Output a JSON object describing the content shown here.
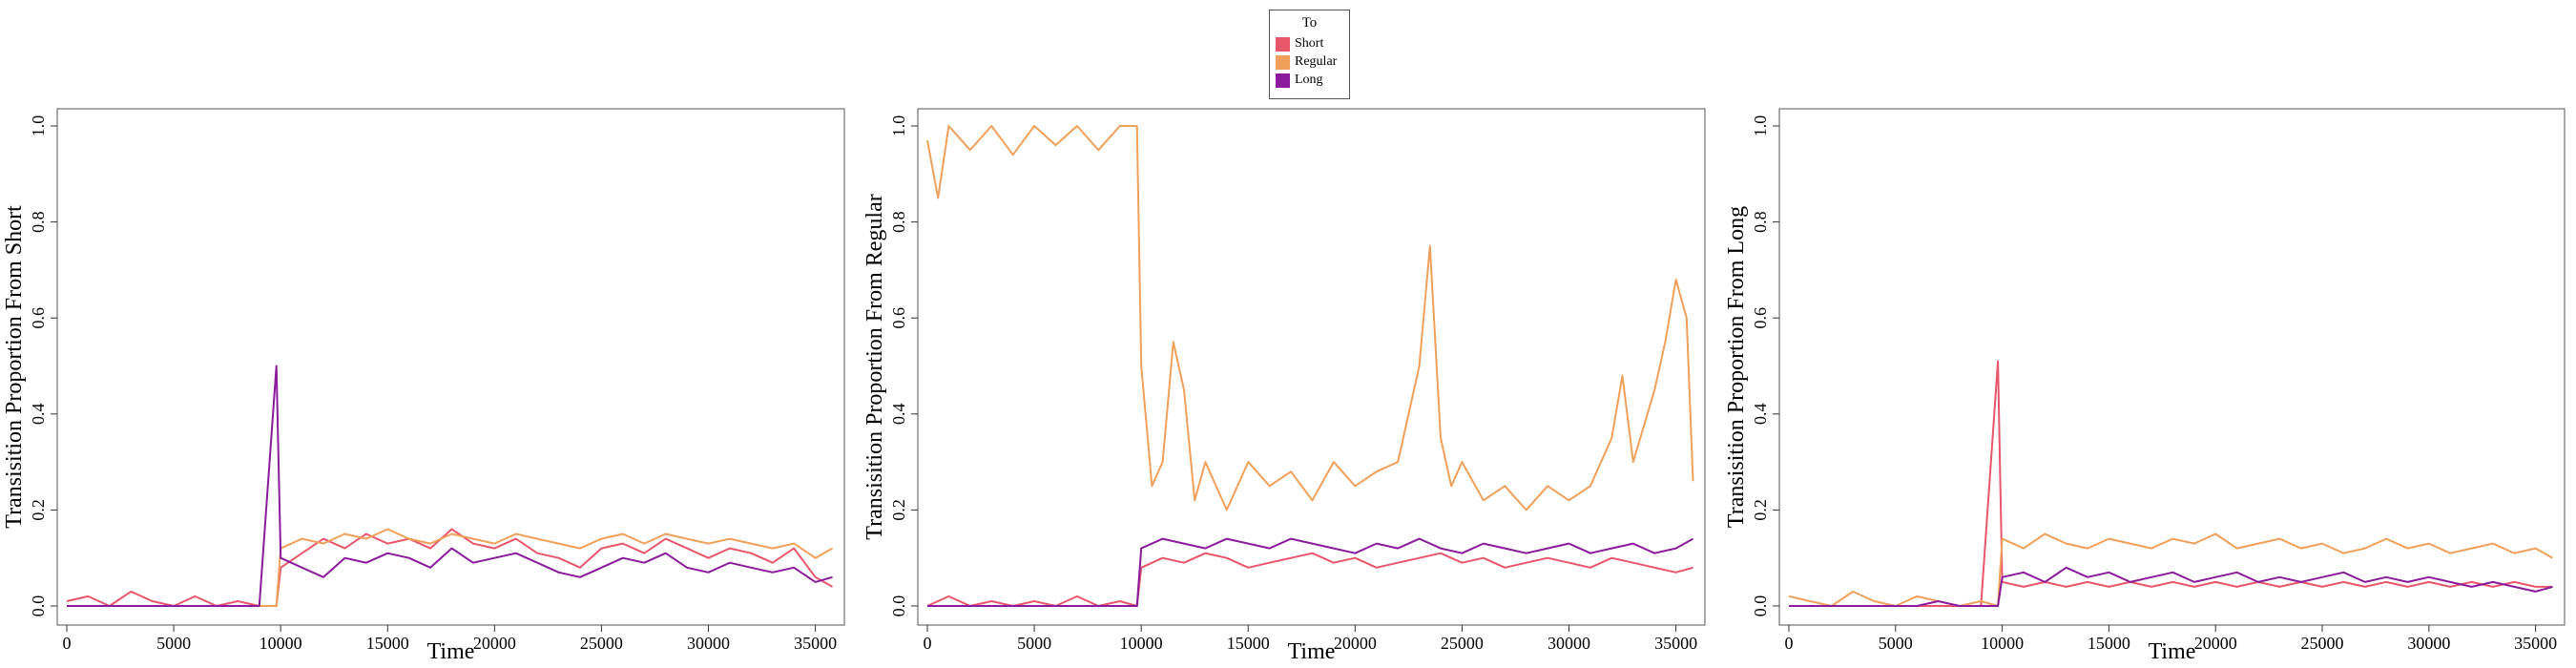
{
  "legend": {
    "title": "To",
    "items": [
      {
        "label": "Short",
        "color": "#e8566c"
      },
      {
        "label": "Regular",
        "color": "#f0a05a"
      },
      {
        "label": "Long",
        "color": "#8b1a9c"
      }
    ]
  },
  "chart_data": [
    {
      "type": "line",
      "xlabel": "Time",
      "ylabel": "Transisition Proportion From Short",
      "xlim": [
        0,
        36000
      ],
      "ylim": [
        0,
        1
      ],
      "xticks": [
        0,
        5000,
        10000,
        15000,
        20000,
        25000,
        30000,
        35000
      ],
      "yticks": [
        0.0,
        0.2,
        0.4,
        0.6,
        0.8,
        1.0
      ],
      "ytick_labels": [
        "0.0",
        "0.2",
        "0.4",
        "0.6",
        "0.8",
        "1.0"
      ],
      "series": [
        {
          "name": "Short",
          "color": "#e8566c",
          "x": [
            0,
            1000,
            2000,
            3000,
            4000,
            5000,
            6000,
            7000,
            8000,
            9000,
            9800,
            10000,
            11000,
            12000,
            13000,
            14000,
            15000,
            16000,
            17000,
            18000,
            19000,
            20000,
            21000,
            22000,
            23000,
            24000,
            25000,
            26000,
            27000,
            28000,
            29000,
            30000,
            31000,
            32000,
            33000,
            34000,
            35000,
            35800
          ],
          "y": [
            0.01,
            0.02,
            0.0,
            0.03,
            0.01,
            0.0,
            0.02,
            0.0,
            0.01,
            0.0,
            0.0,
            0.08,
            0.11,
            0.14,
            0.12,
            0.15,
            0.13,
            0.14,
            0.12,
            0.16,
            0.13,
            0.12,
            0.14,
            0.11,
            0.1,
            0.08,
            0.12,
            0.13,
            0.11,
            0.14,
            0.12,
            0.1,
            0.12,
            0.11,
            0.09,
            0.12,
            0.06,
            0.04
          ]
        },
        {
          "name": "Regular",
          "color": "#f0a05a",
          "x": [
            0,
            1000,
            2000,
            3000,
            4000,
            5000,
            6000,
            7000,
            8000,
            9000,
            9800,
            10000,
            11000,
            12000,
            13000,
            14000,
            15000,
            16000,
            17000,
            18000,
            19000,
            20000,
            21000,
            22000,
            23000,
            24000,
            25000,
            26000,
            27000,
            28000,
            29000,
            30000,
            31000,
            32000,
            33000,
            34000,
            35000,
            35800
          ],
          "y": [
            0.0,
            0.0,
            0.0,
            0.0,
            0.0,
            0.0,
            0.0,
            0.0,
            0.0,
            0.0,
            0.0,
            0.12,
            0.14,
            0.13,
            0.15,
            0.14,
            0.16,
            0.14,
            0.13,
            0.15,
            0.14,
            0.13,
            0.15,
            0.14,
            0.13,
            0.12,
            0.14,
            0.15,
            0.13,
            0.15,
            0.14,
            0.13,
            0.14,
            0.13,
            0.12,
            0.13,
            0.1,
            0.12
          ]
        },
        {
          "name": "Long",
          "color": "#8b1a9c",
          "x": [
            0,
            1000,
            2000,
            3000,
            4000,
            5000,
            6000,
            7000,
            8000,
            9000,
            9800,
            10000,
            11000,
            12000,
            13000,
            14000,
            15000,
            16000,
            17000,
            18000,
            19000,
            20000,
            21000,
            22000,
            23000,
            24000,
            25000,
            26000,
            27000,
            28000,
            29000,
            30000,
            31000,
            32000,
            33000,
            34000,
            35000,
            35800
          ],
          "y": [
            0.0,
            0.0,
            0.0,
            0.0,
            0.0,
            0.0,
            0.0,
            0.0,
            0.0,
            0.0,
            0.5,
            0.1,
            0.08,
            0.06,
            0.1,
            0.09,
            0.11,
            0.1,
            0.08,
            0.12,
            0.09,
            0.1,
            0.11,
            0.09,
            0.07,
            0.06,
            0.08,
            0.1,
            0.09,
            0.11,
            0.08,
            0.07,
            0.09,
            0.08,
            0.07,
            0.08,
            0.05,
            0.06
          ]
        }
      ]
    },
    {
      "type": "line",
      "xlabel": "Time",
      "ylabel": "Transisition Proportion From Regular",
      "xlim": [
        0,
        36000
      ],
      "ylim": [
        0,
        1
      ],
      "xticks": [
        0,
        5000,
        10000,
        15000,
        20000,
        25000,
        30000,
        35000
      ],
      "yticks": [
        0.0,
        0.2,
        0.4,
        0.6,
        0.8,
        1.0
      ],
      "ytick_labels": [
        "0.0",
        "0.2",
        "0.4",
        "0.6",
        "0.8",
        "1.0"
      ],
      "series": [
        {
          "name": "Short",
          "color": "#e8566c",
          "x": [
            0,
            1000,
            2000,
            3000,
            4000,
            5000,
            6000,
            7000,
            8000,
            9000,
            9800,
            10000,
            11000,
            12000,
            13000,
            14000,
            15000,
            16000,
            17000,
            18000,
            19000,
            20000,
            21000,
            22000,
            23000,
            24000,
            25000,
            26000,
            27000,
            28000,
            29000,
            30000,
            31000,
            32000,
            33000,
            34000,
            35000,
            35800
          ],
          "y": [
            0.0,
            0.02,
            0.0,
            0.01,
            0.0,
            0.01,
            0.0,
            0.02,
            0.0,
            0.01,
            0.0,
            0.08,
            0.1,
            0.09,
            0.11,
            0.1,
            0.08,
            0.09,
            0.1,
            0.11,
            0.09,
            0.1,
            0.08,
            0.09,
            0.1,
            0.11,
            0.09,
            0.1,
            0.08,
            0.09,
            0.1,
            0.09,
            0.08,
            0.1,
            0.09,
            0.08,
            0.07,
            0.08
          ]
        },
        {
          "name": "Regular",
          "color": "#f0a05a",
          "x": [
            0,
            500,
            1000,
            2000,
            3000,
            4000,
            5000,
            6000,
            7000,
            8000,
            9000,
            9800,
            10000,
            10500,
            11000,
            11500,
            12000,
            12500,
            13000,
            14000,
            15000,
            16000,
            17000,
            18000,
            19000,
            20000,
            21000,
            22000,
            23000,
            23500,
            24000,
            24500,
            25000,
            26000,
            27000,
            28000,
            29000,
            30000,
            31000,
            32000,
            32500,
            33000,
            34000,
            34500,
            35000,
            35500,
            35800
          ],
          "y": [
            0.97,
            0.85,
            1.0,
            0.95,
            1.0,
            0.94,
            1.0,
            0.96,
            1.0,
            0.95,
            1.0,
            1.0,
            0.5,
            0.25,
            0.3,
            0.55,
            0.45,
            0.22,
            0.3,
            0.2,
            0.3,
            0.25,
            0.28,
            0.22,
            0.3,
            0.25,
            0.28,
            0.3,
            0.5,
            0.75,
            0.35,
            0.25,
            0.3,
            0.22,
            0.25,
            0.2,
            0.25,
            0.22,
            0.25,
            0.35,
            0.48,
            0.3,
            0.45,
            0.55,
            0.68,
            0.6,
            0.26
          ]
        },
        {
          "name": "Long",
          "color": "#8b1a9c",
          "x": [
            0,
            1000,
            2000,
            3000,
            4000,
            5000,
            6000,
            7000,
            8000,
            9000,
            9800,
            10000,
            11000,
            12000,
            13000,
            14000,
            15000,
            16000,
            17000,
            18000,
            19000,
            20000,
            21000,
            22000,
            23000,
            24000,
            25000,
            26000,
            27000,
            28000,
            29000,
            30000,
            31000,
            32000,
            33000,
            34000,
            35000,
            35800
          ],
          "y": [
            0.0,
            0.0,
            0.0,
            0.0,
            0.0,
            0.0,
            0.0,
            0.0,
            0.0,
            0.0,
            0.0,
            0.12,
            0.14,
            0.13,
            0.12,
            0.14,
            0.13,
            0.12,
            0.14,
            0.13,
            0.12,
            0.11,
            0.13,
            0.12,
            0.14,
            0.12,
            0.11,
            0.13,
            0.12,
            0.11,
            0.12,
            0.13,
            0.11,
            0.12,
            0.13,
            0.11,
            0.12,
            0.14
          ]
        }
      ]
    },
    {
      "type": "line",
      "xlabel": "Time",
      "ylabel": "Transisition Proportion From Long",
      "xlim": [
        0,
        36000
      ],
      "ylim": [
        0,
        1
      ],
      "xticks": [
        0,
        5000,
        10000,
        15000,
        20000,
        25000,
        30000,
        35000
      ],
      "yticks": [
        0.0,
        0.2,
        0.4,
        0.6,
        0.8,
        1.0
      ],
      "ytick_labels": [
        "0.0",
        "0.2",
        "0.4",
        "0.6",
        "0.8",
        "1.0"
      ],
      "series": [
        {
          "name": "Short",
          "color": "#e8566c",
          "x": [
            0,
            1000,
            2000,
            3000,
            4000,
            5000,
            6000,
            7000,
            8000,
            9000,
            9800,
            10000,
            11000,
            12000,
            13000,
            14000,
            15000,
            16000,
            17000,
            18000,
            19000,
            20000,
            21000,
            22000,
            23000,
            24000,
            25000,
            26000,
            27000,
            28000,
            29000,
            30000,
            31000,
            32000,
            33000,
            34000,
            35000,
            35800
          ],
          "y": [
            0.0,
            0.0,
            0.0,
            0.0,
            0.0,
            0.0,
            0.0,
            0.0,
            0.0,
            0.0,
            0.51,
            0.05,
            0.04,
            0.05,
            0.04,
            0.05,
            0.04,
            0.05,
            0.04,
            0.05,
            0.04,
            0.05,
            0.04,
            0.05,
            0.04,
            0.05,
            0.04,
            0.05,
            0.04,
            0.05,
            0.04,
            0.05,
            0.04,
            0.05,
            0.04,
            0.05,
            0.04,
            0.04
          ]
        },
        {
          "name": "Regular",
          "color": "#f0a05a",
          "x": [
            0,
            1000,
            2000,
            3000,
            4000,
            5000,
            6000,
            7000,
            8000,
            9000,
            9800,
            10000,
            11000,
            12000,
            13000,
            14000,
            15000,
            16000,
            17000,
            18000,
            19000,
            20000,
            21000,
            22000,
            23000,
            24000,
            25000,
            26000,
            27000,
            28000,
            29000,
            30000,
            31000,
            32000,
            33000,
            34000,
            35000,
            35800
          ],
          "y": [
            0.02,
            0.01,
            0.0,
            0.03,
            0.01,
            0.0,
            0.02,
            0.01,
            0.0,
            0.01,
            0.0,
            0.14,
            0.12,
            0.15,
            0.13,
            0.12,
            0.14,
            0.13,
            0.12,
            0.14,
            0.13,
            0.15,
            0.12,
            0.13,
            0.14,
            0.12,
            0.13,
            0.11,
            0.12,
            0.14,
            0.12,
            0.13,
            0.11,
            0.12,
            0.13,
            0.11,
            0.12,
            0.1
          ]
        },
        {
          "name": "Long",
          "color": "#8b1a9c",
          "x": [
            0,
            1000,
            2000,
            3000,
            4000,
            5000,
            6000,
            7000,
            8000,
            9000,
            9800,
            10000,
            11000,
            12000,
            13000,
            14000,
            15000,
            16000,
            17000,
            18000,
            19000,
            20000,
            21000,
            22000,
            23000,
            24000,
            25000,
            26000,
            27000,
            28000,
            29000,
            30000,
            31000,
            32000,
            33000,
            34000,
            35000,
            35800
          ],
          "y": [
            0.0,
            0.0,
            0.0,
            0.0,
            0.0,
            0.0,
            0.0,
            0.01,
            0.0,
            0.0,
            0.0,
            0.06,
            0.07,
            0.05,
            0.08,
            0.06,
            0.07,
            0.05,
            0.06,
            0.07,
            0.05,
            0.06,
            0.07,
            0.05,
            0.06,
            0.05,
            0.06,
            0.07,
            0.05,
            0.06,
            0.05,
            0.06,
            0.05,
            0.04,
            0.05,
            0.04,
            0.03,
            0.04
          ]
        }
      ]
    }
  ]
}
